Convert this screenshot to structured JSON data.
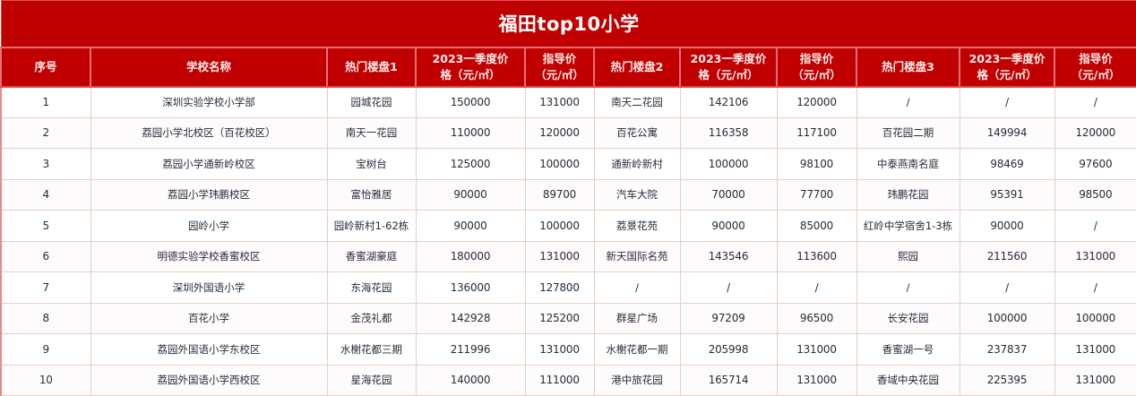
{
  "table": {
    "title": "福田top10小学",
    "header_color": "#c00000",
    "columns": [
      "序号",
      "学校名称",
      "热门楼盘1",
      "2023一季度价格（元/㎡）",
      "指导价（元/㎡）",
      "热门楼盘2",
      "2023一季度价格（元/㎡）",
      "指导价（元/㎡）",
      "热门楼盘3",
      "2023一季度价格（元/㎡）",
      "指导价（元/㎡）"
    ],
    "header_lines": [
      [
        "序号"
      ],
      [
        "学校名称"
      ],
      [
        "热门楼盘1"
      ],
      [
        "2023一季度价",
        "格（元/㎡）"
      ],
      [
        "指导价",
        "（元/㎡）"
      ],
      [
        "热门楼盘2"
      ],
      [
        "2023一季度价",
        "格（元/㎡）"
      ],
      [
        "指导价",
        "（元/㎡）"
      ],
      [
        "热门楼盘3"
      ],
      [
        "2023一季度价",
        "格（元/㎡）"
      ],
      [
        "指导价",
        "（元/㎡）"
      ]
    ],
    "rows": [
      [
        "1",
        "深圳实验学校小学部",
        "园城花园",
        "150000",
        "131000",
        "南天二花园",
        "142106",
        "120000",
        "/",
        "/",
        "/"
      ],
      [
        "2",
        "荔园小学北校区（百花校区）",
        "南天一花园",
        "110000",
        "120000",
        "百花公寓",
        "116358",
        "117100",
        "百花园二期",
        "149994",
        "120000"
      ],
      [
        "3",
        "荔园小学通新岭校区",
        "宝树台",
        "125000",
        "100000",
        "通新岭新村",
        "100000",
        "98100",
        "中泰燕南名庭",
        "98469",
        "97600"
      ],
      [
        "4",
        "荔园小学玮鹏校区",
        "富怡雅居",
        "90000",
        "89700",
        "汽车大院",
        "70000",
        "77700",
        "玮鹏花园",
        "95391",
        "98500"
      ],
      [
        "5",
        "园岭小学",
        "园岭新村1-62栋",
        "90000",
        "100000",
        "荔景花苑",
        "90000",
        "85000",
        "红岭中学宿舍1-3栋",
        "90000",
        "/"
      ],
      [
        "6",
        "明德实验学校香蜜校区",
        "香蜜湖豪庭",
        "180000",
        "131000",
        "新天国际名苑",
        "143546",
        "113600",
        "熙园",
        "211560",
        "131000"
      ],
      [
        "7",
        "深圳外国语小学",
        "东海花园",
        "136000",
        "127800",
        "/",
        "/",
        "/",
        "/",
        "/",
        "/"
      ],
      [
        "8",
        "百花小学",
        "金茂礼都",
        "142928",
        "125200",
        "群星广场",
        "97209",
        "96500",
        "长安花园",
        "100000",
        "100000"
      ],
      [
        "9",
        "荔园外国语小学东校区",
        "水榭花都三期",
        "211996",
        "131000",
        "水榭花都一期",
        "205998",
        "131000",
        "香蜜湖一号",
        "237837",
        "131000"
      ],
      [
        "10",
        "荔园外国语小学西校区",
        "星海花园",
        "140000",
        "111000",
        "港中旅花园",
        "165714",
        "131000",
        "香域中央花园",
        "225395",
        "131000"
      ]
    ]
  }
}
